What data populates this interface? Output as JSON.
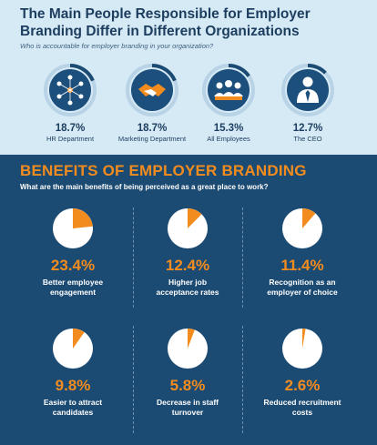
{
  "header": {
    "title": "The Main People Responsible for Employer Branding Differ in Different Organizations",
    "subtitle": "Who is accountable for employer branding in your organization?"
  },
  "roles": [
    {
      "pct": "18.7%",
      "value": 18.7,
      "label": "HR Department",
      "icon": "hr-network-icon"
    },
    {
      "pct": "18.7%",
      "value": 18.7,
      "label": "Marketing Department",
      "icon": "handshake-icon"
    },
    {
      "pct": "15.3%",
      "value": 15.3,
      "label": "All Employees",
      "icon": "group-icon"
    },
    {
      "pct": "12.7%",
      "value": 12.7,
      "label": "The CEO",
      "icon": "executive-icon"
    }
  ],
  "benefits": {
    "title": "BENEFITS OF EMPLOYER BRANDING",
    "subtitle": "What are the main benefits of being perceived as a great place to work?",
    "items": [
      {
        "pct": "23.4%",
        "value": 23.4,
        "label_1": "Better employee",
        "label_2": "engagement"
      },
      {
        "pct": "12.4%",
        "value": 12.4,
        "label_1": "Higher job",
        "label_2": "acceptance rates"
      },
      {
        "pct": "11.4%",
        "value": 11.4,
        "label_1": "Recognition as an",
        "label_2": "employer of choice"
      },
      {
        "pct": "9.8%",
        "value": 9.8,
        "label_1": "Easier to attract",
        "label_2": "candidates"
      },
      {
        "pct": "5.8%",
        "value": 5.8,
        "label_1": "Decrease in staff",
        "label_2": "turnover"
      },
      {
        "pct": "2.6%",
        "value": 2.6,
        "label_1": "Reduced recruitment",
        "label_2": "costs"
      }
    ]
  },
  "colors": {
    "accent": "#f28c1e",
    "navy": "#1b4a73",
    "dark": "#1c3d5e",
    "light_bg": "#d6eaf6",
    "ring_track": "#b9d3e6"
  }
}
